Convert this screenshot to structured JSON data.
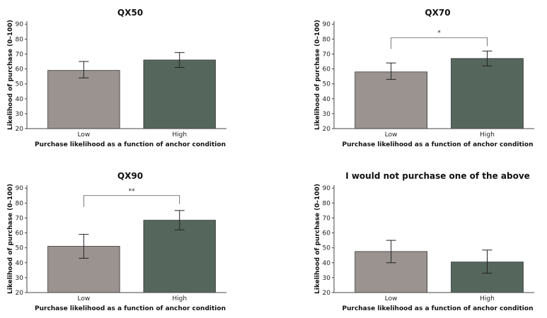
{
  "colors": {
    "low": "#9a9390",
    "high": "#55675d"
  },
  "chart_data": [
    {
      "type": "bar",
      "title": "QX50",
      "categories": [
        "Low",
        "High"
      ],
      "values": [
        59,
        66
      ],
      "error_low": [
        54,
        61
      ],
      "error_high": [
        65,
        71
      ],
      "xlabel": "Purchase likelihood as a function of anchor condition",
      "ylabel": "Likelihood of purchase (0–100)",
      "ylim": [
        20,
        92
      ],
      "yticks": [
        "20",
        "30",
        "40",
        "50",
        "60",
        "70",
        "80",
        "90"
      ],
      "significance": null
    },
    {
      "type": "bar",
      "title": "QX70",
      "categories": [
        "Low",
        "High"
      ],
      "values": [
        58,
        67
      ],
      "error_low": [
        53,
        62
      ],
      "error_high": [
        64,
        72
      ],
      "xlabel": "Purchase likelihood as a function of anchor condition",
      "ylabel": "Likelihood of purchase (0–100)",
      "ylim": [
        20,
        92
      ],
      "yticks": [
        "20",
        "30",
        "40",
        "50",
        "60",
        "70",
        "80",
        "90"
      ],
      "significance": {
        "label": "*",
        "y": 81
      }
    },
    {
      "type": "bar",
      "title": "QX90",
      "categories": [
        "Low",
        "High"
      ],
      "values": [
        51,
        68.5
      ],
      "error_low": [
        43,
        62
      ],
      "error_high": [
        59,
        75
      ],
      "xlabel": "Purchase likelihood as a function of anchor condition",
      "ylabel": "Likelihood of purchase (0–100)",
      "ylim": [
        20,
        92
      ],
      "yticks": [
        "20",
        "30",
        "40",
        "50",
        "60",
        "70",
        "80",
        "90"
      ],
      "significance": {
        "label": "**",
        "y": 85
      }
    },
    {
      "type": "bar",
      "title": "I would not purchase one of the above",
      "categories": [
        "Low",
        "High"
      ],
      "values": [
        47.5,
        40.5
      ],
      "error_low": [
        40,
        33
      ],
      "error_high": [
        55,
        48.5
      ],
      "xlabel": "Purchase likelihood as a function of anchor condition",
      "ylabel": "Likelihood of purchase (0–100)",
      "ylim": [
        20,
        92
      ],
      "yticks": [
        "20",
        "30",
        "40",
        "50",
        "60",
        "70",
        "80",
        "90"
      ],
      "significance": null
    }
  ]
}
